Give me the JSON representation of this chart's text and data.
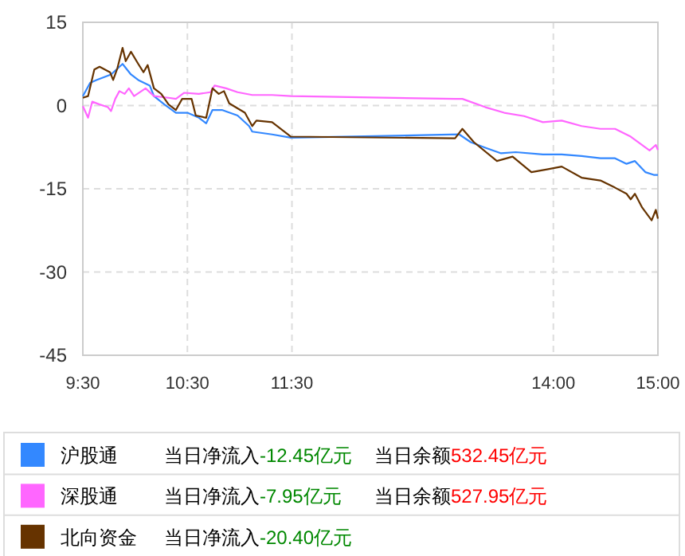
{
  "chart_data": {
    "type": "line",
    "x": [
      9.5,
      9.57,
      9.63,
      9.77,
      9.88,
      9.96,
      10.03,
      10.14,
      10.18,
      10.28,
      10.39,
      10.5,
      10.61,
      10.68,
      10.74,
      10.83,
      10.98,
      11.09,
      11.12,
      11.31,
      11.49,
      13.1,
      13.21,
      13.35,
      13.5,
      13.64,
      13.9,
      14.08,
      14.27,
      14.45,
      14.59,
      14.7,
      14.78,
      14.88,
      14.96,
      15
    ],
    "xlim": [
      9.5,
      15
    ],
    "xticks": [
      {
        "value": 9.5,
        "label": "9:30"
      },
      {
        "value": 10.5,
        "label": "10:30"
      },
      {
        "value": 11.5,
        "label": "11:30"
      },
      {
        "value": 14,
        "label": "14:00"
      },
      {
        "value": 15,
        "label": "15:00"
      }
    ],
    "ylim": [
      -45,
      15
    ],
    "yticks": [
      15,
      0,
      -15,
      -30,
      -45
    ],
    "grid": true,
    "legend": "bottom",
    "line_style": "solid",
    "marker": "none",
    "series": [
      {
        "name": "沪股通",
        "color": "#3388ff",
        "values": [
          1.7,
          4.1,
          4.6,
          5.6,
          7.5,
          5.6,
          4.6,
          3.6,
          1.7,
          0.2,
          -1.3,
          -1.3,
          -2.2,
          -3.2,
          -0.8,
          -0.8,
          -1.8,
          -3.7,
          -4.7,
          -5.2,
          -5.8,
          -5.2,
          -6.6,
          -7.6,
          -8.6,
          -8.4,
          -8.8,
          -8.8,
          -9.1,
          -9.5,
          -9.5,
          -10.5,
          -10,
          -12,
          -12.5,
          -12.5
        ]
      },
      {
        "name": "深股通",
        "color": "#ff66ff",
        "x": [
          9.5,
          9.55,
          9.59,
          9.66,
          9.74,
          9.77,
          9.81,
          9.85,
          9.9,
          9.94,
          9.99,
          10.1,
          10.18,
          10.32,
          10.39,
          10.47,
          10.61,
          10.72,
          10.76,
          10.87,
          10.98,
          11.12,
          11.31,
          11.49,
          13.06,
          13.13,
          13.35,
          13.53,
          13.72,
          13.9,
          14.08,
          14.27,
          14.45,
          14.59,
          14.74,
          14.92,
          14.98,
          15
        ],
        "values": [
          -0.1,
          -2.2,
          0.7,
          0.2,
          -0.3,
          -1,
          1.2,
          2.6,
          2.1,
          3.1,
          1.7,
          3.1,
          1.7,
          1.4,
          1.2,
          2.3,
          2.1,
          2.4,
          3.6,
          3.1,
          2.4,
          1.9,
          1.9,
          1.7,
          1.2,
          1.2,
          -0.3,
          -1.3,
          -1.9,
          -3,
          -2.7,
          -3.7,
          -4.2,
          -4.2,
          -5.6,
          -8.1,
          -7.1,
          -8
        ]
      },
      {
        "name": "北向资金",
        "color": "#663300",
        "x": [
          9.5,
          9.55,
          9.61,
          9.66,
          9.76,
          9.79,
          9.83,
          9.88,
          9.91,
          9.96,
          10.03,
          10.08,
          10.12,
          10.18,
          10.25,
          10.32,
          10.39,
          10.45,
          10.54,
          10.58,
          10.68,
          10.74,
          10.8,
          10.85,
          10.9,
          11.05,
          11.12,
          11.16,
          11.31,
          11.49,
          13.06,
          13.13,
          13.24,
          13.46,
          13.61,
          13.79,
          13.94,
          14.08,
          14.27,
          14.45,
          14.59,
          14.7,
          14.74,
          14.78,
          14.85,
          14.94,
          14.98,
          15
        ],
        "values": [
          1.4,
          1.7,
          6.5,
          7,
          6,
          4.6,
          6.7,
          10.4,
          8,
          9.7,
          7.5,
          6,
          7.3,
          3.1,
          2.1,
          0.2,
          -0.8,
          1.2,
          1.2,
          -1.8,
          -2.2,
          3.1,
          2.1,
          2.6,
          0.4,
          -1.3,
          -3.7,
          -2.7,
          -3,
          -5.6,
          -5.9,
          -4.2,
          -6.6,
          -10,
          -9.2,
          -12,
          -11.5,
          -11,
          -13,
          -13.5,
          -14.8,
          -15.9,
          -16.9,
          -15.9,
          -18.4,
          -20.7,
          -18.8,
          -20.4
        ]
      }
    ],
    "annotations": [
      "当日净流入-12.45亿元",
      "当日余额532.45亿元",
      "当日净流入-7.95亿元",
      "当日余额527.95亿元",
      "当日净流入-20.40亿元"
    ]
  }
}
